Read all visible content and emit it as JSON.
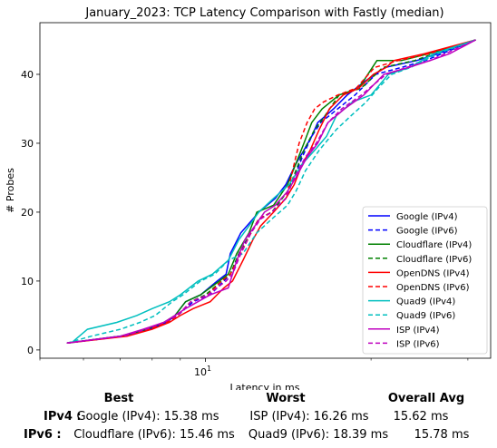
{
  "chart_data": {
    "type": "line",
    "title": "January_2023: TCP Latency Comparison with Fastly (median)",
    "xlabel": "Latency in ms",
    "ylabel": "# Probes",
    "xscale": "log",
    "xlim": [
      5.0,
      33.0
    ],
    "ylim": [
      -1.2,
      47.5
    ],
    "xticks": [
      {
        "value": 10,
        "label": "10^1"
      }
    ],
    "yticks": [
      0,
      10,
      20,
      30,
      40
    ],
    "legend_position": "lower-right",
    "series": [
      {
        "name": "Google (IPv4)",
        "color": "#0000ff",
        "dash": "solid",
        "x": [
          5.6,
          7.0,
          7.9,
          8.5,
          8.8,
          9.2,
          9.8,
          10.5,
          10.9,
          11.1,
          11.6,
          12.2,
          12.5,
          13.4,
          14.0,
          14.6,
          15.1,
          15.6,
          16.0,
          17.1,
          18.1,
          19.5,
          21.2,
          24.2,
          26.5,
          31.0
        ],
        "y": [
          1,
          2,
          3,
          4,
          5,
          7,
          8,
          10,
          11,
          14,
          17,
          19,
          20,
          22,
          24,
          27,
          29,
          31,
          33,
          35,
          37,
          39,
          41,
          42,
          43,
          45
        ]
      },
      {
        "name": "Google (IPv6)",
        "color": "#0000ff",
        "dash": "dashed",
        "x": [
          5.6,
          7.1,
          7.9,
          8.5,
          8.9,
          9.5,
          10.2,
          10.8,
          11.1,
          11.5,
          12.1,
          12.5,
          13.2,
          14.0,
          14.5,
          15.0,
          15.6,
          16.2,
          17.4,
          18.7,
          20.4,
          22.7,
          25.1,
          31.0
        ],
        "y": [
          1,
          2,
          3,
          4,
          5,
          7,
          8,
          10,
          11,
          14,
          17,
          19,
          20,
          22,
          25,
          28,
          31,
          33,
          35,
          37,
          40,
          41,
          42,
          45
        ]
      },
      {
        "name": "Cloudflare (IPv4)",
        "color": "#008000",
        "dash": "solid",
        "x": [
          5.6,
          7.0,
          7.8,
          8.4,
          8.8,
          9.2,
          9.8,
          10.6,
          11.0,
          11.4,
          12.0,
          12.4,
          13.3,
          14.1,
          14.6,
          15.1,
          15.6,
          16.3,
          17.5,
          19.0,
          20.5,
          22.7,
          25.5,
          31.0
        ],
        "y": [
          1,
          2,
          3,
          4,
          5,
          7,
          8,
          10,
          11,
          14,
          17,
          20,
          21,
          24,
          27,
          30,
          33,
          35,
          37,
          38,
          42,
          42,
          43,
          45
        ]
      },
      {
        "name": "Cloudflare (IPv6)",
        "color": "#008000",
        "dash": "dashed",
        "x": [
          5.6,
          7.1,
          7.9,
          8.5,
          8.9,
          9.4,
          10.0,
          10.7,
          11.1,
          11.5,
          12.1,
          12.5,
          13.2,
          14.1,
          14.6,
          15.1,
          15.8,
          16.5,
          17.5,
          19.2,
          21.0,
          24.0,
          26.0,
          31.0
        ],
        "y": [
          1,
          2,
          3,
          4,
          5,
          7,
          8,
          10,
          11,
          14,
          17,
          19,
          20,
          23,
          26,
          29,
          32,
          34,
          37,
          38,
          41,
          42,
          43,
          45
        ]
      },
      {
        "name": "OpenDNS (IPv4)",
        "color": "#ff0000",
        "dash": "solid",
        "x": [
          5.6,
          7.2,
          8.0,
          8.6,
          9.0,
          9.5,
          10.2,
          10.8,
          11.2,
          11.7,
          12.2,
          12.6,
          13.3,
          14.0,
          14.5,
          15.0,
          15.5,
          16.1,
          16.8,
          17.8,
          19.0,
          20.2,
          21.3,
          22.0,
          25.0,
          31.0
        ],
        "y": [
          1,
          2,
          3,
          4,
          5,
          6,
          7,
          9,
          10,
          13,
          16,
          18,
          20,
          22,
          24,
          27,
          29,
          32,
          35,
          37,
          38,
          40,
          41,
          42,
          43,
          45
        ]
      },
      {
        "name": "OpenDNS (IPv6)",
        "color": "#ff0000",
        "dash": "dashed",
        "x": [
          5.6,
          7.1,
          7.9,
          8.5,
          8.9,
          9.4,
          10.1,
          10.7,
          11.1,
          11.6,
          12.1,
          12.5,
          13.2,
          14.0,
          14.4,
          14.8,
          15.3,
          15.8,
          16.4,
          17.4,
          18.8,
          20.3,
          22.4,
          25.5,
          31.0
        ],
        "y": [
          1,
          2,
          3,
          4,
          5,
          7,
          8,
          10,
          11,
          14,
          17,
          19,
          20,
          22,
          26,
          30,
          33,
          35,
          36,
          37,
          38,
          41,
          42,
          43,
          45
        ]
      },
      {
        "name": "Quad9 (IPv4)",
        "color": "#00bfbf",
        "dash": "solid",
        "x": [
          5.7,
          6.1,
          6.9,
          7.5,
          8.0,
          8.6,
          9.0,
          9.7,
          10.3,
          11.0,
          11.5,
          12.0,
          12.5,
          13.3,
          14.2,
          15.0,
          15.8,
          16.6,
          17.3,
          18.5,
          20.0,
          21.5,
          23.5,
          26.0,
          31.0
        ],
        "y": [
          1,
          3,
          4,
          5,
          6,
          7,
          8,
          10,
          11,
          13,
          16,
          18,
          20,
          22,
          24,
          27,
          29,
          31,
          34,
          36,
          37,
          40,
          41,
          43,
          45
        ]
      },
      {
        "name": "Quad9 (IPv6)",
        "color": "#00bfbf",
        "dash": "dashed",
        "x": [
          5.6,
          6.2,
          7.0,
          7.6,
          8.1,
          8.7,
          9.1,
          9.8,
          10.4,
          11.0,
          11.7,
          12.4,
          13.2,
          14.1,
          14.6,
          15.2,
          16.1,
          17.3,
          18.4,
          19.6,
          20.6,
          21.8,
          23.6,
          26.4,
          31.0
        ],
        "y": [
          1,
          2,
          3,
          4,
          5,
          7,
          8,
          10,
          11,
          13,
          14,
          17,
          19,
          21,
          23,
          26,
          29,
          32,
          34,
          36,
          38,
          40,
          41,
          43,
          45
        ]
      },
      {
        "name": "ISP (IPv4)",
        "color": "#bf00bf",
        "dash": "solid",
        "x": [
          5.6,
          7.0,
          7.7,
          8.4,
          8.8,
          9.2,
          10.2,
          11.0,
          11.4,
          11.8,
          12.3,
          12.8,
          13.4,
          14.1,
          14.6,
          15.3,
          16.0,
          16.7,
          17.9,
          19.4,
          21.1,
          23.4,
          25.6,
          27.8,
          31.0
        ],
        "y": [
          1,
          2,
          3,
          4,
          5,
          6,
          8,
          9,
          13,
          16,
          18,
          20,
          21,
          23,
          25,
          28,
          30,
          33,
          35,
          37,
          40,
          41,
          42,
          43,
          45
        ]
      },
      {
        "name": "ISP (IPv6)",
        "color": "#bf00bf",
        "dash": "dashed",
        "x": [
          5.6,
          7.1,
          7.8,
          8.4,
          8.9,
          9.4,
          10.1,
          10.9,
          11.2,
          11.6,
          12.1,
          12.6,
          13.2,
          14.0,
          14.5,
          15.2,
          15.9,
          16.7,
          17.7,
          19.2,
          21.3,
          23.2,
          25.6,
          31.0
        ],
        "y": [
          1,
          2,
          3,
          4,
          5,
          7,
          8,
          10,
          11,
          14,
          17,
          19,
          20,
          22,
          25,
          28,
          30,
          33,
          35,
          37,
          40,
          41,
          42,
          45
        ]
      }
    ]
  },
  "summary": {
    "headers": {
      "best": "Best",
      "worst": "Worst",
      "avg": "Overall Avg"
    },
    "rows": [
      {
        "label": "IPv4 :",
        "best": "Google (IPv4): 15.38 ms",
        "worst": "ISP (IPv4): 16.26 ms",
        "avg": "15.62 ms"
      },
      {
        "label": "IPv6 :",
        "best": "Cloudflare (IPv6): 15.46 ms",
        "worst": "Quad9 (IPv6): 18.39 ms",
        "avg": "15.78 ms"
      }
    ]
  }
}
